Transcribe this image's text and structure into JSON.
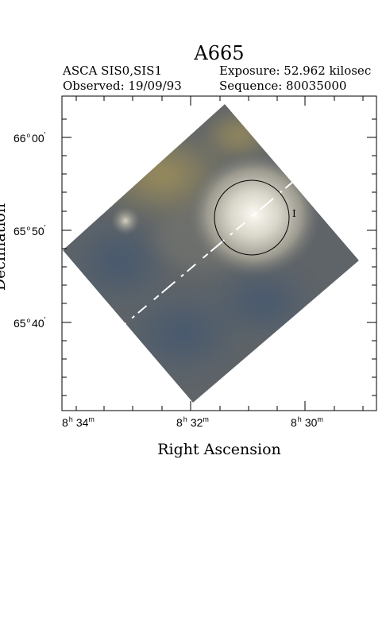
{
  "header": {
    "title": "A665",
    "instrument": "ASCA SIS0,SIS1",
    "exposure": "Exposure: 52.962 kilosec",
    "observed": "Observed: 19/09/93",
    "sequence": "Sequence: 80035000"
  },
  "axes": {
    "xlabel": "Right Ascension",
    "ylabel": "Declination",
    "dec_ticks": [
      {
        "deg": "66",
        "min": "00"
      },
      {
        "deg": "65",
        "min": "50"
      },
      {
        "deg": "65",
        "min": "40"
      }
    ],
    "ra_ticks": [
      {
        "h": "8",
        "m": "34"
      },
      {
        "h": "8",
        "m": "32"
      },
      {
        "h": "8",
        "m": "30"
      }
    ]
  },
  "image": {
    "region_label": "I",
    "colors": {
      "background_field": "#5f6468",
      "bright_core": "#f2efe6",
      "yellow_tint": "#9a8c50",
      "blue_tint": "#4d5a6a"
    }
  }
}
